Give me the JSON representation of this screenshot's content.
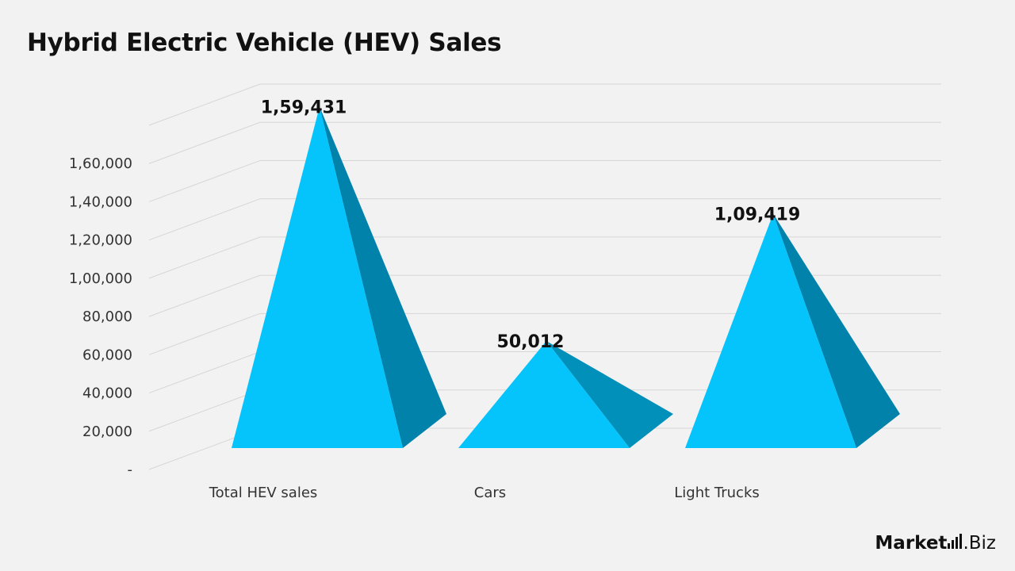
{
  "title": "Hybrid Electric Vehicle (HEV) Sales",
  "brand": {
    "part1": "Market",
    "part2": ".Biz"
  },
  "colors": {
    "front": "#05c3fb",
    "side": "#0082aa",
    "side_small": "#0090ba",
    "grid": "#d6d6d6"
  },
  "chart_data": {
    "type": "bar",
    "style": "3d-pyramid",
    "title": "Hybrid Electric Vehicle (HEV) Sales",
    "categories": [
      "Total HEV sales",
      "Cars",
      "Light Trucks"
    ],
    "values": [
      159431,
      50012,
      109419
    ],
    "data_labels": [
      "1,59,431",
      "50,012",
      "1,09,419"
    ],
    "y_ticks": [
      0,
      20000,
      40000,
      60000,
      80000,
      100000,
      120000,
      140000,
      160000
    ],
    "y_tick_labels": [
      "-",
      "20,000",
      "40,000",
      "60,000",
      "80,000",
      "1,00,000",
      "1,20,000",
      "1,40,000",
      "1,60,000"
    ],
    "ylim": [
      0,
      160000
    ],
    "grid": true,
    "legend": "none"
  }
}
